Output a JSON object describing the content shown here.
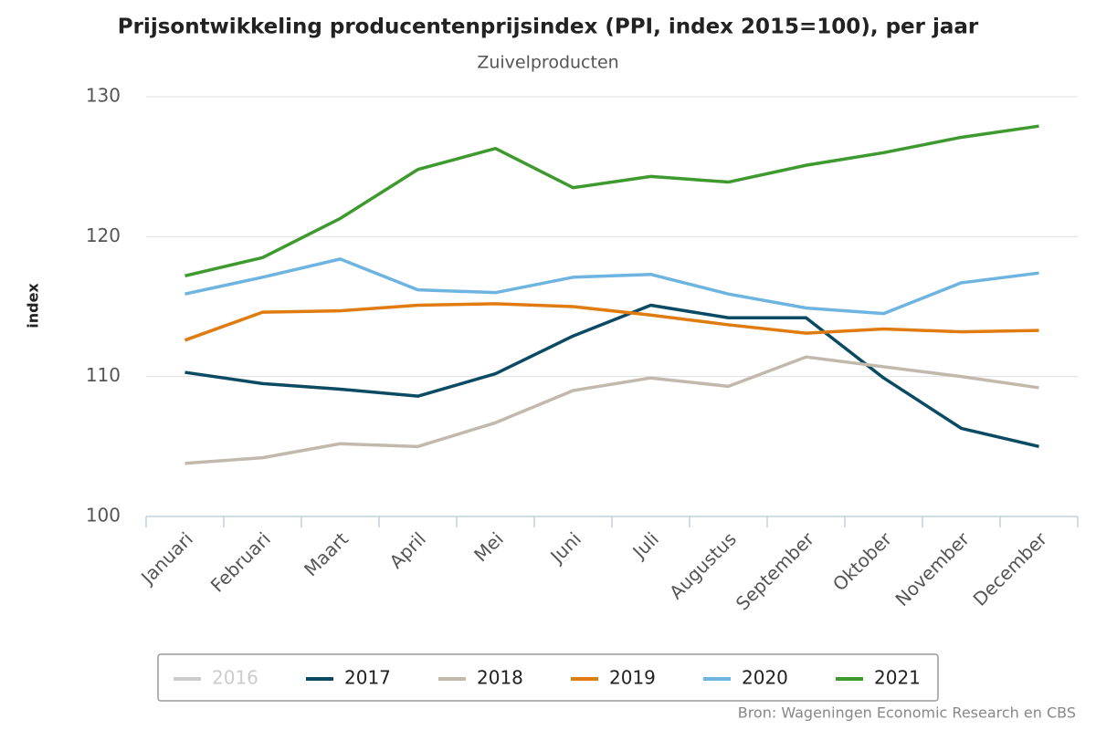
{
  "chart_data": {
    "type": "line",
    "title": "Prijsontwikkeling producentenprijsindex (PPI, index 2015=100), per jaar",
    "subtitle": "Zuivelproducten",
    "y_label": "index",
    "source": "Bron: Wageningen Economic Research en CBS",
    "categories": [
      "Januari",
      "Februari",
      "Maart",
      "April",
      "Mei",
      "Juni",
      "Juli",
      "Augustus",
      "September",
      "Oktober",
      "November",
      "December"
    ],
    "ylim": [
      100,
      130
    ],
    "yticks": [
      100,
      110,
      120,
      130
    ],
    "grid": true,
    "legend": "bottom",
    "series": [
      {
        "name": "2016",
        "color": "#cccccc",
        "visible": false,
        "values": [
          null,
          null,
          null,
          null,
          null,
          null,
          null,
          null,
          null,
          null,
          null,
          null
        ]
      },
      {
        "name": "2017",
        "color": "#0b4a63",
        "values": [
          110.3,
          109.5,
          109.1,
          108.6,
          110.2,
          112.9,
          115.1,
          114.2,
          114.2,
          109.9,
          106.3,
          105.0
        ]
      },
      {
        "name": "2018",
        "color": "#c2b9ad",
        "values": [
          103.8,
          104.2,
          105.2,
          105.0,
          106.7,
          109.0,
          109.9,
          109.3,
          111.4,
          110.7,
          110.0,
          109.2
        ]
      },
      {
        "name": "2019",
        "color": "#e07b10",
        "values": [
          112.6,
          114.6,
          114.7,
          115.1,
          115.2,
          115.0,
          114.4,
          113.7,
          113.1,
          113.4,
          113.2,
          113.3
        ]
      },
      {
        "name": "2020",
        "color": "#6db4e0",
        "values": [
          115.9,
          117.1,
          118.4,
          116.2,
          116.0,
          117.1,
          117.3,
          115.9,
          114.9,
          114.5,
          116.7,
          117.4
        ]
      },
      {
        "name": "2021",
        "color": "#3e9a2e",
        "values": [
          117.2,
          118.5,
          121.3,
          124.8,
          126.3,
          123.5,
          124.3,
          123.9,
          125.1,
          126.0,
          127.1,
          127.9
        ]
      }
    ]
  }
}
